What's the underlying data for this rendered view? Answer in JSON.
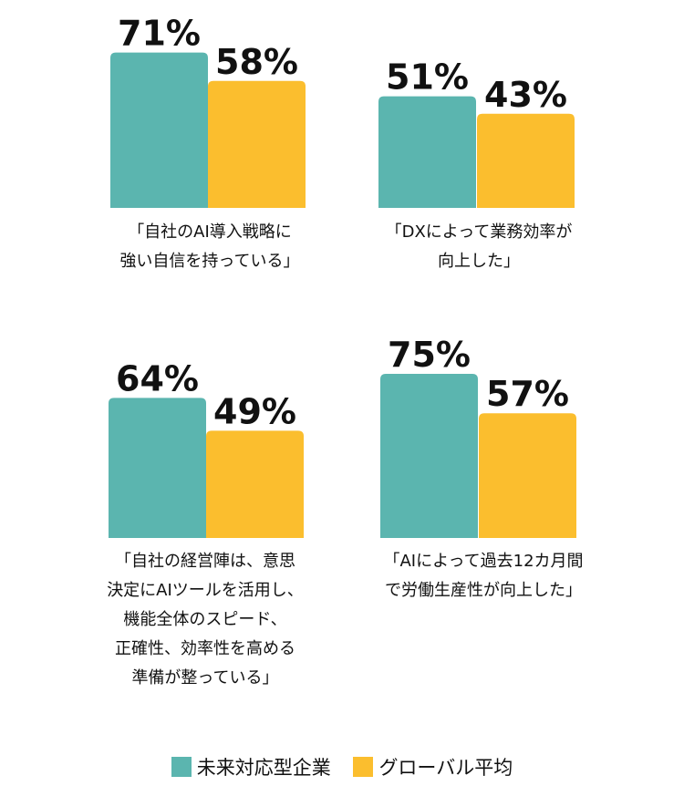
{
  "colors": {
    "series1": "#5BB5AF",
    "series2": "#FBBE2E",
    "text": "#111111"
  },
  "legend": {
    "series1": "未来対応型企業",
    "series2": "グローバル平均"
  },
  "chart_data": [
    {
      "type": "bar",
      "series": [
        {
          "name": "未来対応型企業",
          "values": [
            71
          ]
        },
        {
          "name": "グローバル平均",
          "values": [
            58
          ]
        }
      ],
      "value_labels": [
        "71%",
        "58%"
      ],
      "caption": [
        "「自社のAI導入戦略に",
        "強い自信を持っている」"
      ]
    },
    {
      "type": "bar",
      "series": [
        {
          "name": "未来対応型企業",
          "values": [
            51
          ]
        },
        {
          "name": "グローバル平均",
          "values": [
            43
          ]
        }
      ],
      "value_labels": [
        "51%",
        "43%"
      ],
      "caption": [
        "「DXによって業務効率が",
        "向上した」"
      ]
    },
    {
      "type": "bar",
      "series": [
        {
          "name": "未来対応型企業",
          "values": [
            64
          ]
        },
        {
          "name": "グローバル平均",
          "values": [
            49
          ]
        }
      ],
      "value_labels": [
        "64%",
        "49%"
      ],
      "caption": [
        "「自社の経営陣は、意思",
        "決定にAIツールを活用し、",
        "機能全体のスピード、",
        "正確性、効率性を高める",
        "準備が整っている」"
      ]
    },
    {
      "type": "bar",
      "series": [
        {
          "name": "未来対応型企業",
          "values": [
            75
          ]
        },
        {
          "name": "グローバル平均",
          "values": [
            57
          ]
        }
      ],
      "value_labels": [
        "75%",
        "57%"
      ],
      "caption": [
        "「AIによって過去12カ月間",
        "で労働生産性が向上した」"
      ]
    }
  ]
}
